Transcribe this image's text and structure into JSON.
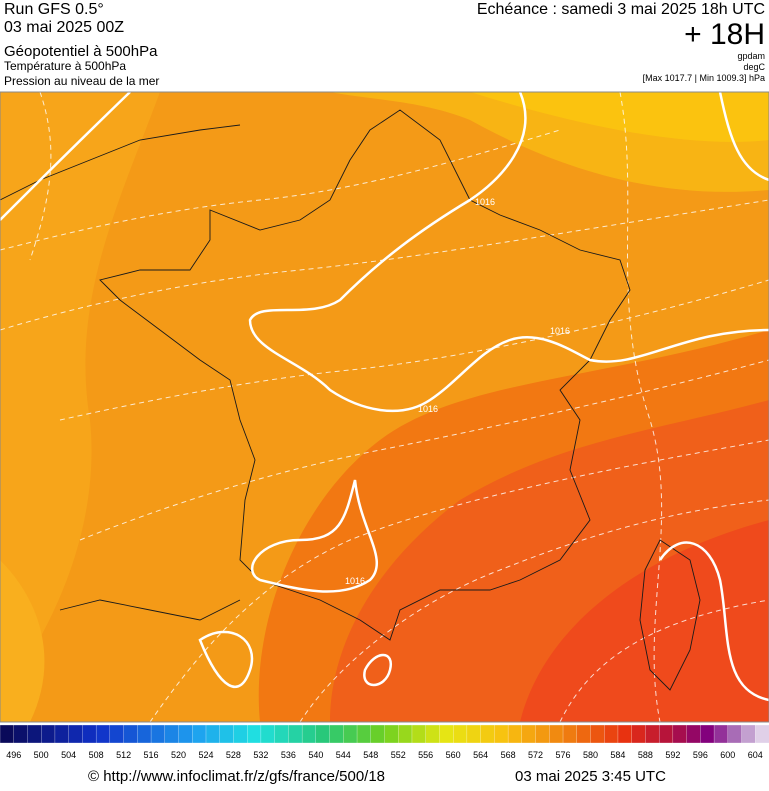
{
  "header": {
    "run": "Run GFS 0.5°",
    "date": "03 mai 2025 00Z",
    "field1": "Géopotentiel à 500hPa",
    "field2": "Température à 500hPa",
    "field3": "Pression au niveau de la mer",
    "echeance": "Echéance : samedi 3 mai 2025 18h UTC",
    "lead": "+ 18H",
    "unit1": "gpdam",
    "unit2": "degC",
    "range": "[Max 1017.7 | Min 1009.3] hPa"
  },
  "map": {
    "isobar_labels": [
      "1016",
      "1016",
      "1016",
      "1016"
    ]
  },
  "colorbar": {
    "labels": [
      496,
      500,
      504,
      508,
      512,
      516,
      520,
      524,
      528,
      532,
      536,
      540,
      544,
      548,
      552,
      556,
      560,
      564,
      568,
      572,
      576,
      580,
      584,
      588,
      592,
      596,
      600,
      604
    ]
  },
  "footer": {
    "source": "© http://www.infoclimat.fr/z/gfs/france/500/18",
    "timestamp": "03 mai 2025  3:45 UTC"
  }
}
